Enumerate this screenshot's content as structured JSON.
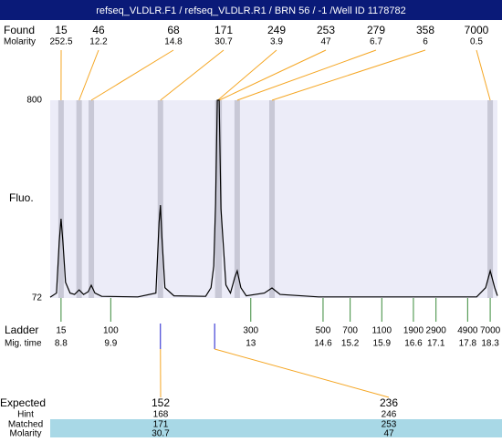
{
  "header": {
    "title": "refseq_VLDLR.F1 / refseq_VLDLR.R1 / BRN 56 / -1 /Well ID 1178782"
  },
  "found": {
    "label": "Found",
    "sizes": [
      15,
      46,
      68,
      171,
      249,
      253,
      279,
      358,
      7000
    ],
    "peak_times": [
      8.8,
      9.2,
      9.47,
      11.0,
      12.27,
      12.3,
      12.7,
      13.47,
      18.3
    ]
  },
  "molarity": {
    "label": "Molarity",
    "values": [
      252.5,
      12.2,
      14.8,
      30.7,
      3.9,
      47,
      6.7,
      6,
      0.5
    ]
  },
  "plot": {
    "ylabel": "Fluo.",
    "ylim": [
      72,
      800
    ],
    "yticks": [
      72,
      800
    ],
    "xlim": [
      8.56,
      18.46
    ]
  },
  "trace": {
    "x": [
      8.56,
      8.7,
      8.76,
      8.8,
      8.84,
      8.9,
      9.0,
      9.1,
      9.2,
      9.3,
      9.4,
      9.47,
      9.55,
      9.7,
      10.5,
      10.9,
      10.97,
      11.0,
      11.03,
      11.1,
      11.3,
      12.0,
      12.12,
      12.18,
      12.22,
      12.26,
      12.3,
      12.34,
      12.45,
      12.55,
      12.65,
      12.7,
      12.78,
      12.9,
      13.3,
      13.47,
      13.65,
      14.5,
      18.0,
      18.2,
      18.3,
      18.4,
      18.46
    ],
    "y": [
      75,
      90,
      280,
      364,
      280,
      130,
      90,
      85,
      102,
      85,
      95,
      119,
      90,
      78,
      76,
      90,
      350,
      414,
      300,
      110,
      80,
      78,
      110,
      190,
      420,
      800,
      800,
      400,
      120,
      90,
      150,
      172,
      110,
      80,
      90,
      109,
      85,
      76,
      76,
      110,
      172,
      110,
      80
    ]
  },
  "ladder": {
    "label": "Ladder",
    "sizes": [
      15,
      100,
      300,
      500,
      700,
      1100,
      1900,
      2900,
      4900,
      7000
    ],
    "mig_time_label": "Mig. time",
    "mig_times": [
      8.8,
      9.9,
      13,
      14.6,
      15.2,
      15.9,
      16.6,
      17.1,
      17.8,
      18.3
    ]
  },
  "expected": {
    "label": "Expected",
    "sizes": [
      152,
      236
    ],
    "times": [
      11.0,
      12.2
    ],
    "rows": [
      {
        "label": "Hint",
        "values": [
          168,
          246
        ]
      },
      {
        "label": "Matched",
        "values": [
          171,
          253
        ]
      },
      {
        "label": "Molarity",
        "values": [
          30.7,
          47
        ]
      }
    ]
  }
}
